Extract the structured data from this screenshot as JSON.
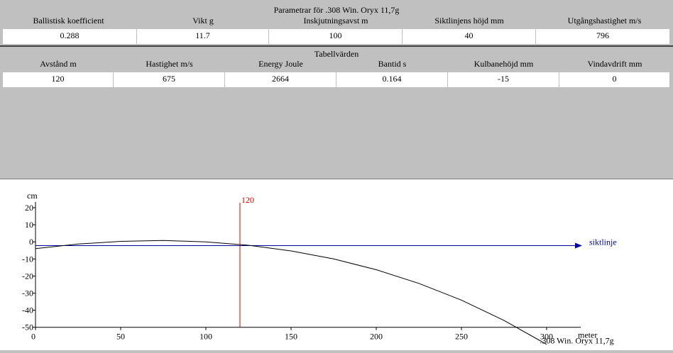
{
  "params": {
    "title": "Parametrar för .308 Win. Oryx 11,7g",
    "headers": [
      "Ballistisk koefficient",
      "Vikt g",
      "Inskjutningsavst m",
      "Siktlinjens höjd mm",
      "Utgångshastighet m/s"
    ],
    "values": [
      "0.288",
      "11.7",
      "100",
      "40",
      "796"
    ]
  },
  "table": {
    "title": "Tabellvärden",
    "headers": [
      "Avstånd m",
      "Hastighet m/s",
      "Energy Joule",
      "Bantid s",
      "Kulbanehöjd mm",
      "Vindavdrift mm"
    ],
    "values": [
      "120",
      "675",
      "2664",
      "0.164",
      "-15",
      "0"
    ]
  },
  "chart_data": {
    "type": "line",
    "ylabel": "cm",
    "xlabel": "meter",
    "xlim": [
      0,
      320
    ],
    "ylim": [
      -50,
      20
    ],
    "x_ticks": [
      0,
      50,
      100,
      150,
      200,
      250,
      300
    ],
    "y_ticks": [
      20,
      10,
      0,
      -10,
      -20,
      -30,
      -40,
      -50
    ],
    "marker": {
      "x": 120,
      "label": "120",
      "color": "#d00000"
    },
    "sightline": {
      "label": "siktlinje",
      "color": "#0000a0"
    },
    "series": [
      {
        "name": ".308 Win. Oryx 11,7g",
        "x": [
          0,
          25,
          50,
          75,
          100,
          125,
          150,
          175,
          200,
          225,
          250,
          275,
          300
        ],
        "y": [
          -4,
          -1.3,
          0.3,
          0.8,
          0,
          -2,
          -5.3,
          -10,
          -16.3,
          -24.3,
          -34.1,
          -46,
          -60
        ]
      }
    ]
  }
}
